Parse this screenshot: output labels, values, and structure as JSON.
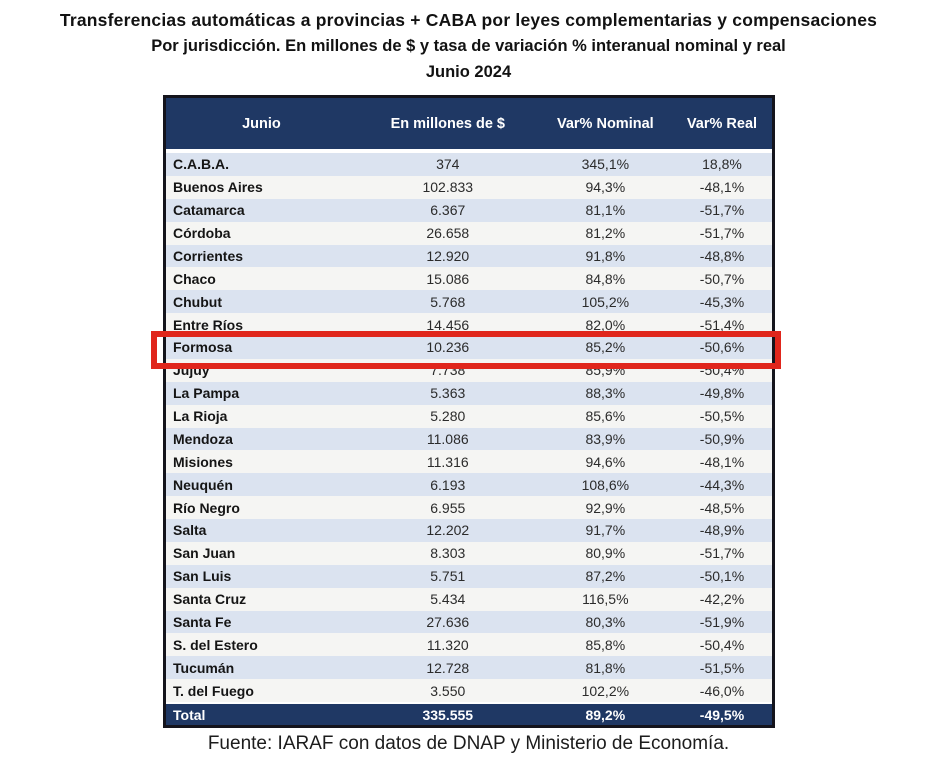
{
  "title": {
    "line1": "Transferencias automáticas a provincias + CABA por leyes complementarias y compensaciones",
    "line2": "Por jurisdicción. En millones de $ y tasa de variación % interanual nominal y real",
    "line3": "Junio 2024"
  },
  "table": {
    "columns": [
      "Junio",
      "En millones de $",
      "Var% Nominal",
      "Var% Real"
    ],
    "rows": [
      {
        "jurisdiction": "C.A.B.A.",
        "millones": "374",
        "var_nominal": "345,1%",
        "var_real": "18,8%"
      },
      {
        "jurisdiction": "Buenos Aires",
        "millones": "102.833",
        "var_nominal": "94,3%",
        "var_real": "-48,1%"
      },
      {
        "jurisdiction": "Catamarca",
        "millones": "6.367",
        "var_nominal": "81,1%",
        "var_real": "-51,7%"
      },
      {
        "jurisdiction": "Córdoba",
        "millones": "26.658",
        "var_nominal": "81,2%",
        "var_real": "-51,7%"
      },
      {
        "jurisdiction": "Corrientes",
        "millones": "12.920",
        "var_nominal": "91,8%",
        "var_real": "-48,8%"
      },
      {
        "jurisdiction": "Chaco",
        "millones": "15.086",
        "var_nominal": "84,8%",
        "var_real": "-50,7%"
      },
      {
        "jurisdiction": "Chubut",
        "millones": "5.768",
        "var_nominal": "105,2%",
        "var_real": "-45,3%"
      },
      {
        "jurisdiction": "Entre Ríos",
        "millones": "14.456",
        "var_nominal": "82,0%",
        "var_real": "-51,4%"
      },
      {
        "jurisdiction": "Formosa",
        "millones": "10.236",
        "var_nominal": "85,2%",
        "var_real": "-50,6%"
      },
      {
        "jurisdiction": "Jujuy",
        "millones": "7.738",
        "var_nominal": "85,9%",
        "var_real": "-50,4%"
      },
      {
        "jurisdiction": "La Pampa",
        "millones": "5.363",
        "var_nominal": "88,3%",
        "var_real": "-49,8%"
      },
      {
        "jurisdiction": "La Rioja",
        "millones": "5.280",
        "var_nominal": "85,6%",
        "var_real": "-50,5%"
      },
      {
        "jurisdiction": "Mendoza",
        "millones": "11.086",
        "var_nominal": "83,9%",
        "var_real": "-50,9%"
      },
      {
        "jurisdiction": "Misiones",
        "millones": "11.316",
        "var_nominal": "94,6%",
        "var_real": "-48,1%"
      },
      {
        "jurisdiction": "Neuquén",
        "millones": "6.193",
        "var_nominal": "108,6%",
        "var_real": "-44,3%"
      },
      {
        "jurisdiction": "Río Negro",
        "millones": "6.955",
        "var_nominal": "92,9%",
        "var_real": "-48,5%"
      },
      {
        "jurisdiction": "Salta",
        "millones": "12.202",
        "var_nominal": "91,7%",
        "var_real": "-48,9%"
      },
      {
        "jurisdiction": "San Juan",
        "millones": "8.303",
        "var_nominal": "80,9%",
        "var_real": "-51,7%"
      },
      {
        "jurisdiction": "San Luis",
        "millones": "5.751",
        "var_nominal": "87,2%",
        "var_real": "-50,1%"
      },
      {
        "jurisdiction": "Santa Cruz",
        "millones": "5.434",
        "var_nominal": "116,5%",
        "var_real": "-42,2%"
      },
      {
        "jurisdiction": "Santa Fe",
        "millones": "27.636",
        "var_nominal": "80,3%",
        "var_real": "-51,9%"
      },
      {
        "jurisdiction": "S. del Estero",
        "millones": "11.320",
        "var_nominal": "85,8%",
        "var_real": "-50,4%"
      },
      {
        "jurisdiction": "Tucumán",
        "millones": "12.728",
        "var_nominal": "81,8%",
        "var_real": "-51,5%"
      },
      {
        "jurisdiction": "T. del Fuego",
        "millones": "3.550",
        "var_nominal": "102,2%",
        "var_real": "-46,0%"
      }
    ],
    "total": {
      "jurisdiction": "Total",
      "millones": "335.555",
      "var_nominal": "89,2%",
      "var_real": "-49,5%"
    },
    "highlighted_jurisdiction": "Formosa"
  },
  "footer": {
    "source": "Fuente: IARAF con datos de DNAP y Ministerio de Economía."
  },
  "colors": {
    "header_bg": "#1F3864",
    "row_alt_bg": "#DBE3F0",
    "row_bg": "#F5F5F3",
    "highlight_border": "#E0261C"
  },
  "chart_data": {
    "type": "table",
    "title": "Transferencias automáticas a provincias + CABA por leyes complementarias y compensaciones",
    "subtitle": "Por jurisdicción. En millones de $ y tasa de variación % interanual nominal y real",
    "period": "Junio 2024",
    "columns": [
      "Junio",
      "En millones de $",
      "Var% Nominal",
      "Var% Real"
    ],
    "categories": [
      "C.A.B.A.",
      "Buenos Aires",
      "Catamarca",
      "Córdoba",
      "Corrientes",
      "Chaco",
      "Chubut",
      "Entre Ríos",
      "Formosa",
      "Jujuy",
      "La Pampa",
      "La Rioja",
      "Mendoza",
      "Misiones",
      "Neuquén",
      "Río Negro",
      "Salta",
      "San Juan",
      "San Luis",
      "Santa Cruz",
      "Santa Fe",
      "S. del Estero",
      "Tucumán",
      "T. del Fuego"
    ],
    "series": [
      {
        "name": "En millones de $",
        "values": [
          374,
          102833,
          6367,
          26658,
          12920,
          15086,
          5768,
          14456,
          10236,
          7738,
          5363,
          5280,
          11086,
          11316,
          6193,
          6955,
          12202,
          8303,
          5751,
          5434,
          27636,
          11320,
          12728,
          3550
        ]
      },
      {
        "name": "Var% Nominal",
        "values": [
          345.1,
          94.3,
          81.1,
          81.2,
          91.8,
          84.8,
          105.2,
          82.0,
          85.2,
          85.9,
          88.3,
          85.6,
          83.9,
          94.6,
          108.6,
          92.9,
          91.7,
          80.9,
          87.2,
          116.5,
          80.3,
          85.8,
          81.8,
          102.2
        ]
      },
      {
        "name": "Var% Real",
        "values": [
          18.8,
          -48.1,
          -51.7,
          -51.7,
          -48.8,
          -50.7,
          -45.3,
          -51.4,
          -50.6,
          -50.4,
          -49.8,
          -50.5,
          -50.9,
          -48.1,
          -44.3,
          -48.5,
          -48.9,
          -51.7,
          -50.1,
          -42.2,
          -51.9,
          -50.4,
          -51.5,
          -46.0
        ]
      }
    ],
    "totals": {
      "En millones de $": 335555,
      "Var% Nominal": 89.2,
      "Var% Real": -49.5
    },
    "highlighted_row": "Formosa",
    "source": "Fuente: IARAF con datos de DNAP y Ministerio de Economía."
  }
}
